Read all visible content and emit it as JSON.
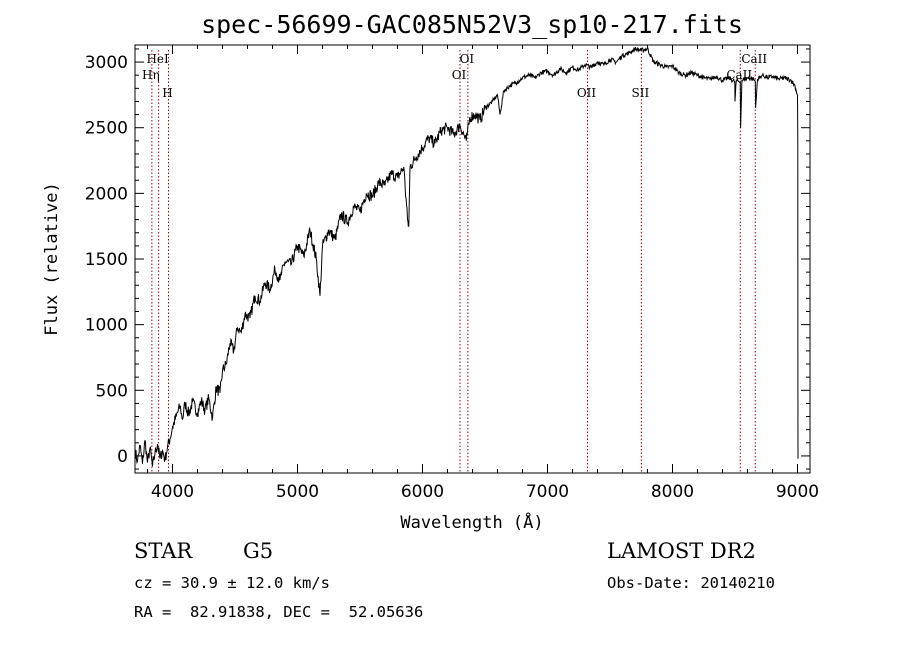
{
  "chart_data": {
    "type": "line",
    "title": "spec-56699-GAC085N52V3_sp10-217.fits",
    "xlabel": "Wavelength (Å)",
    "ylabel": "Flux (relative)",
    "xlim": [
      3700,
      9100
    ],
    "ylim": [
      -130,
      3130
    ],
    "x_ticks": [
      4000,
      5000,
      6000,
      7000,
      8000,
      9000
    ],
    "y_ticks": [
      0,
      500,
      1000,
      1500,
      2000,
      2500,
      3000
    ],
    "grid": false,
    "series": [
      {
        "points": [
          [
            3700,
            40
          ],
          [
            3720,
            -40
          ],
          [
            3740,
            80
          ],
          [
            3760,
            -60
          ],
          [
            3780,
            120
          ],
          [
            3800,
            -50
          ],
          [
            3820,
            60
          ],
          [
            3840,
            -80
          ],
          [
            3860,
            20
          ],
          [
            3880,
            90
          ],
          [
            3900,
            -20
          ],
          [
            3920,
            40
          ],
          [
            3940,
            -30
          ],
          [
            3960,
            70
          ],
          [
            3980,
            130
          ],
          [
            4000,
            220
          ],
          [
            4030,
            300
          ],
          [
            4060,
            380
          ],
          [
            4080,
            280
          ],
          [
            4100,
            400
          ],
          [
            4130,
            320
          ],
          [
            4160,
            410
          ],
          [
            4200,
            330
          ],
          [
            4230,
            420
          ],
          [
            4260,
            350
          ],
          [
            4290,
            440
          ],
          [
            4320,
            290
          ],
          [
            4350,
            520
          ],
          [
            4380,
            480
          ],
          [
            4400,
            650
          ],
          [
            4430,
            700
          ],
          [
            4460,
            860
          ],
          [
            4490,
            800
          ],
          [
            4520,
            980
          ],
          [
            4550,
            940
          ],
          [
            4580,
            1080
          ],
          [
            4620,
            1050
          ],
          [
            4660,
            1220
          ],
          [
            4700,
            1180
          ],
          [
            4740,
            1320
          ],
          [
            4780,
            1270
          ],
          [
            4820,
            1420
          ],
          [
            4860,
            1340
          ],
          [
            4900,
            1480
          ],
          [
            4950,
            1460
          ],
          [
            5000,
            1600
          ],
          [
            5050,
            1520
          ],
          [
            5100,
            1720
          ],
          [
            5150,
            1500
          ],
          [
            5180,
            1220
          ],
          [
            5200,
            1600
          ],
          [
            5250,
            1720
          ],
          [
            5300,
            1650
          ],
          [
            5350,
            1840
          ],
          [
            5400,
            1780
          ],
          [
            5450,
            1900
          ],
          [
            5500,
            1860
          ],
          [
            5550,
            2000
          ],
          [
            5600,
            1980
          ],
          [
            5650,
            2080
          ],
          [
            5700,
            2060
          ],
          [
            5750,
            2150
          ],
          [
            5800,
            2120
          ],
          [
            5850,
            2200
          ],
          [
            5880,
            1800
          ],
          [
            5890,
            1750
          ],
          [
            5900,
            2200
          ],
          [
            5950,
            2280
          ],
          [
            6000,
            2350
          ],
          [
            6050,
            2420
          ],
          [
            6100,
            2380
          ],
          [
            6150,
            2480
          ],
          [
            6200,
            2500
          ],
          [
            6250,
            2450
          ],
          [
            6300,
            2520
          ],
          [
            6350,
            2400
          ],
          [
            6380,
            2580
          ],
          [
            6420,
            2600
          ],
          [
            6460,
            2560
          ],
          [
            6500,
            2650
          ],
          [
            6560,
            2700
          ],
          [
            6600,
            2750
          ],
          [
            6620,
            2600
          ],
          [
            6650,
            2780
          ],
          [
            6700,
            2820
          ],
          [
            6760,
            2850
          ],
          [
            6800,
            2880
          ],
          [
            6850,
            2900
          ],
          [
            6900,
            2880
          ],
          [
            6950,
            2920
          ],
          [
            7000,
            2930
          ],
          [
            7050,
            2900
          ],
          [
            7100,
            2950
          ],
          [
            7150,
            2920
          ],
          [
            7200,
            2960
          ],
          [
            7250,
            2940
          ],
          [
            7300,
            2980
          ],
          [
            7350,
            2960
          ],
          [
            7400,
            3000
          ],
          [
            7450,
            2980
          ],
          [
            7500,
            3020
          ],
          [
            7550,
            3000
          ],
          [
            7600,
            3050
          ],
          [
            7650,
            3070
          ],
          [
            7700,
            3100
          ],
          [
            7750,
            3090
          ],
          [
            7800,
            3100
          ],
          [
            7850,
            3000
          ],
          [
            7900,
            2980
          ],
          [
            7950,
            2960
          ],
          [
            8000,
            2970
          ],
          [
            8050,
            2920
          ],
          [
            8100,
            2900
          ],
          [
            8150,
            2920
          ],
          [
            8200,
            2900
          ],
          [
            8250,
            2880
          ],
          [
            8300,
            2870
          ],
          [
            8350,
            2890
          ],
          [
            8400,
            2860
          ],
          [
            8450,
            2880
          ],
          [
            8498,
            2850
          ],
          [
            8500,
            2700
          ],
          [
            8510,
            2860
          ],
          [
            8542,
            2850
          ],
          [
            8545,
            2500
          ],
          [
            8555,
            2860
          ],
          [
            8600,
            2880
          ],
          [
            8650,
            2870
          ],
          [
            8662,
            2850
          ],
          [
            8665,
            2650
          ],
          [
            8680,
            2870
          ],
          [
            8720,
            2900
          ],
          [
            8760,
            2880
          ],
          [
            8800,
            2890
          ],
          [
            8850,
            2870
          ],
          [
            8900,
            2880
          ],
          [
            8950,
            2860
          ],
          [
            8980,
            2820
          ],
          [
            8990,
            2780
          ],
          [
            9000,
            2750
          ],
          [
            9002,
            2400
          ],
          [
            9003,
            500
          ],
          [
            9004,
            -20
          ]
        ]
      }
    ],
    "lines": [
      {
        "label": "HeI",
        "wavelength": 3889,
        "label_row": 0
      },
      {
        "label": "Hη",
        "wavelength": 3835,
        "label_row": 1
      },
      {
        "label": "H",
        "wavelength": 3968,
        "label_row": 2
      },
      {
        "label": "OI",
        "wavelength": 6363,
        "label_row": 0
      },
      {
        "label": "OI",
        "wavelength": 6300,
        "label_row": 1
      },
      {
        "label": "OII",
        "wavelength": 7320,
        "label_row": 2
      },
      {
        "label": "SII",
        "wavelength": 7751,
        "label_row": 2
      },
      {
        "label": "CaII",
        "wavelength": 8662,
        "label_row": 0
      },
      {
        "label": "CaII",
        "wavelength": 8542,
        "label_row": 1
      }
    ]
  },
  "info": {
    "object_class": "STAR",
    "subclass": "G5",
    "survey": "LAMOST DR2",
    "cz": "cz = 30.9 ± 12.0 km/s",
    "obs_date": "Obs-Date: 20140210",
    "coords": "RA =  82.91838, DEC =  52.05636"
  }
}
